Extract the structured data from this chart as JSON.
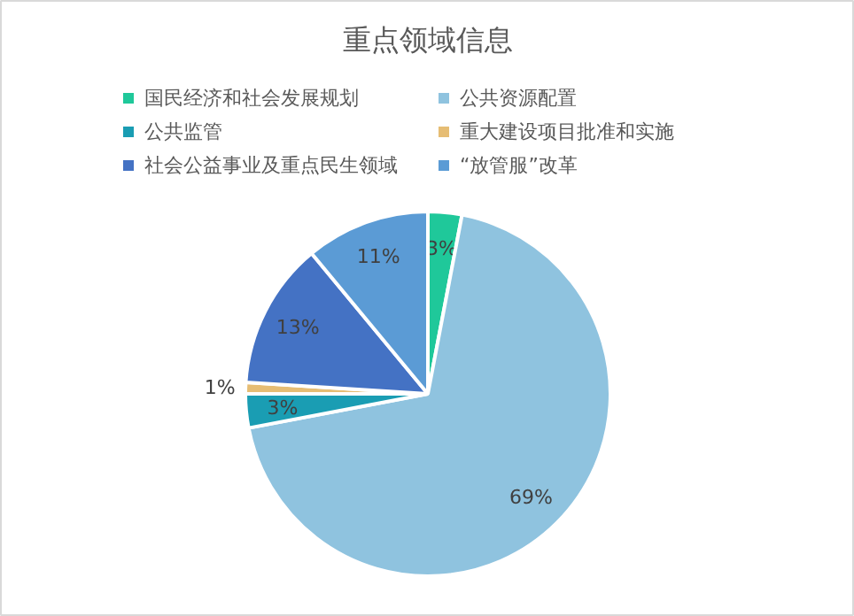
{
  "chart_data": {
    "type": "pie",
    "title": "重点领域信息",
    "categories": [
      "国民经济和社会发展规划",
      "公共资源配置",
      "公共监管",
      "重大建设项目批准和实施",
      "社会公益事业及重点民生领域",
      "“放管服”改革"
    ],
    "values": [
      3,
      69,
      3,
      1,
      13,
      11
    ],
    "colors": [
      "#1fc89a",
      "#8fc3df",
      "#1a9db3",
      "#e6bd74",
      "#4472c4",
      "#5b9bd5"
    ],
    "value_labels": [
      "3%",
      "69%",
      "3%",
      "1%",
      "13%",
      "11%"
    ],
    "legend": "top"
  }
}
